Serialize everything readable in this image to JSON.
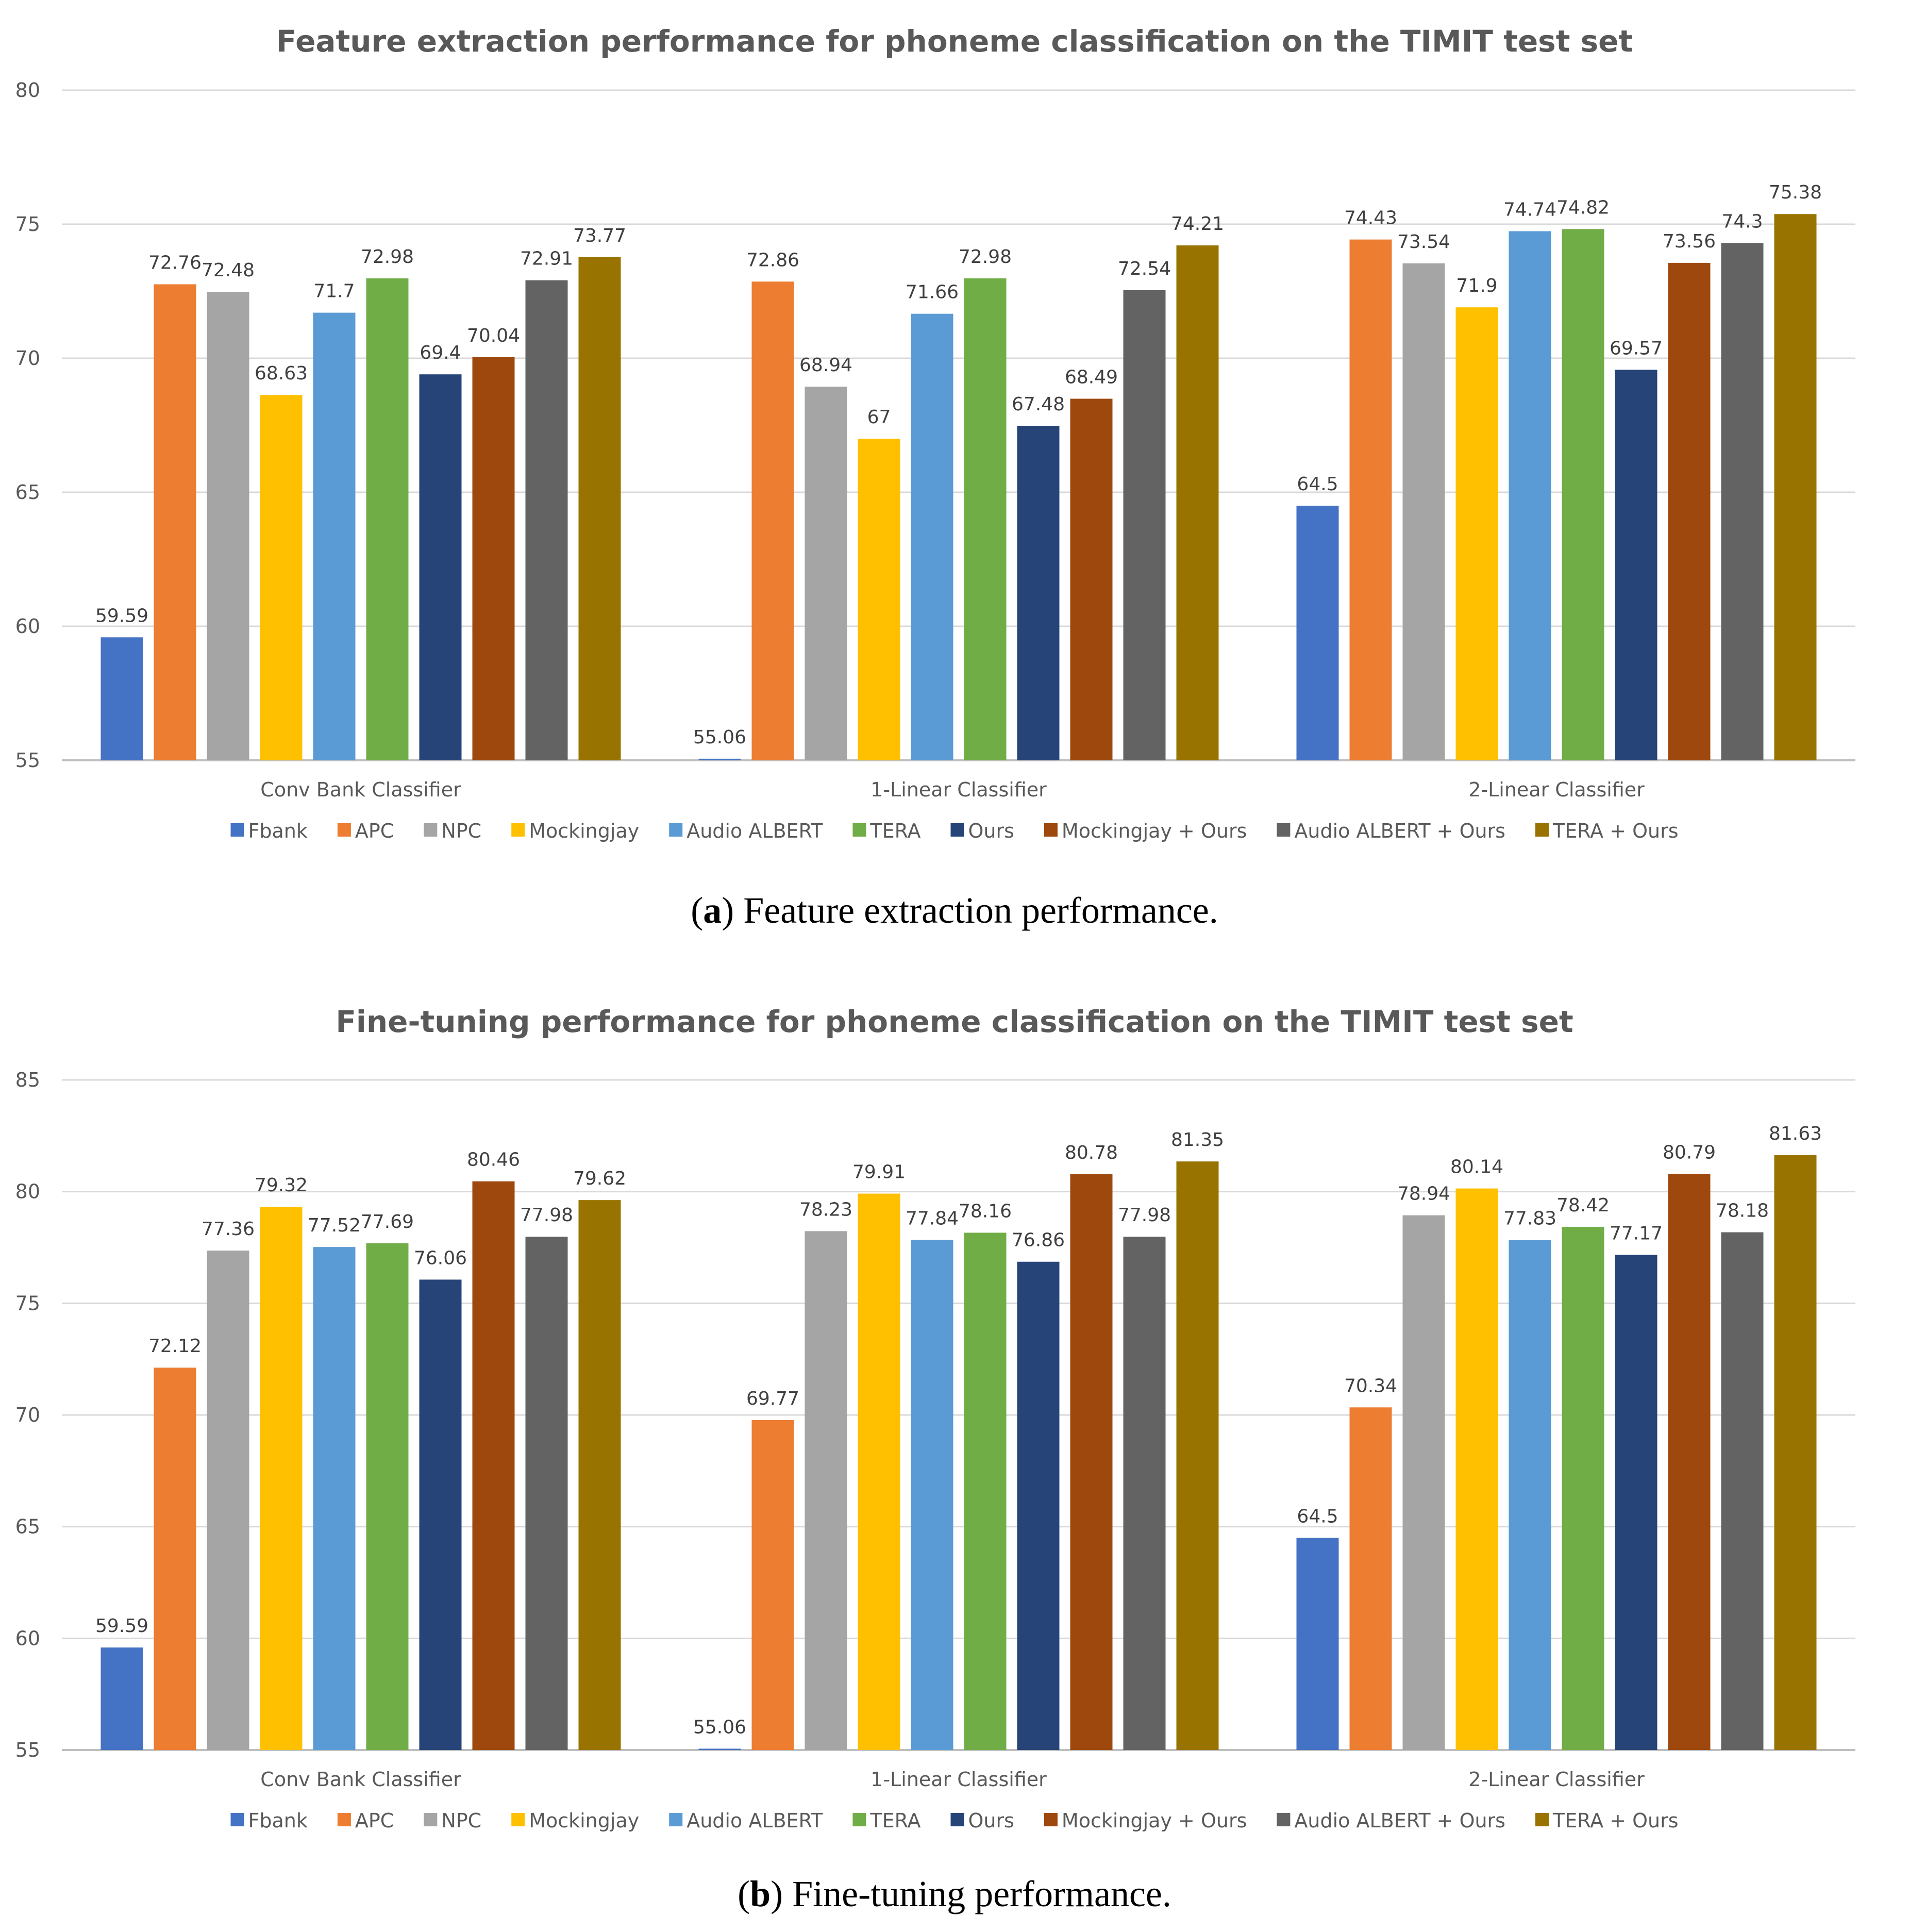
{
  "chart_data": [
    {
      "type": "bar",
      "title": "Feature extraction performance for phoneme classification on the TIMIT test set",
      "caption_label": "a",
      "caption_text": " Feature extraction performance.",
      "ylim": [
        55,
        80
      ],
      "yticks": [
        55,
        60,
        65,
        70,
        75,
        80
      ],
      "grid": true,
      "legend_position": "bottom",
      "categories": [
        "Conv Bank Classifier",
        "1-Linear Classifier",
        "2-Linear Classifier"
      ],
      "series": [
        {
          "name": "Fbank",
          "color": "#4472C4",
          "values": [
            59.59,
            55.06,
            64.5
          ],
          "labels": [
            "59.59",
            "55.06",
            "64.5"
          ]
        },
        {
          "name": "APC",
          "color": "#ED7D31",
          "values": [
            72.76,
            72.86,
            74.43
          ],
          "labels": [
            "72.76",
            "72.86",
            "74.43"
          ]
        },
        {
          "name": "NPC",
          "color": "#A5A5A5",
          "values": [
            72.48,
            68.94,
            73.54
          ],
          "labels": [
            "72.48",
            "68.94",
            "73.54"
          ]
        },
        {
          "name": "Mockingjay",
          "color": "#FFC000",
          "values": [
            68.63,
            67,
            71.9
          ],
          "labels": [
            "68.63",
            "67",
            "71.9"
          ]
        },
        {
          "name": "Audio ALBERT",
          "color": "#5B9BD5",
          "values": [
            71.7,
            71.66,
            74.74
          ],
          "labels": [
            "71.7",
            "71.66",
            "74.74"
          ]
        },
        {
          "name": "TERA",
          "color": "#70AD47",
          "values": [
            72.98,
            72.98,
            74.82
          ],
          "labels": [
            "72.98",
            "72.98",
            "74.82"
          ]
        },
        {
          "name": "Ours",
          "color": "#264478",
          "values": [
            69.4,
            67.48,
            69.57
          ],
          "labels": [
            "69.4",
            "67.48",
            "69.57"
          ]
        },
        {
          "name": "Mockingjay + Ours",
          "color": "#9E480E",
          "values": [
            70.04,
            68.49,
            73.56
          ],
          "labels": [
            "70.04",
            "68.49",
            "73.56"
          ]
        },
        {
          "name": "Audio ALBERT + Ours",
          "color": "#636363",
          "values": [
            72.91,
            72.54,
            74.3
          ],
          "labels": [
            "72.91",
            "72.54",
            "74.3"
          ]
        },
        {
          "name": "TERA + Ours",
          "color": "#997300",
          "values": [
            73.77,
            74.21,
            75.38
          ],
          "labels": [
            "73.77",
            "74.21",
            "75.38"
          ]
        }
      ]
    },
    {
      "type": "bar",
      "title": "Fine-tuning performance for phoneme classification on the TIMIT test set",
      "caption_label": "b",
      "caption_text": " Fine-tuning performance.",
      "ylim": [
        55,
        85
      ],
      "yticks": [
        55,
        60,
        65,
        70,
        75,
        80,
        85
      ],
      "grid": true,
      "legend_position": "bottom",
      "categories": [
        "Conv Bank Classifier",
        "1-Linear Classifier",
        "2-Linear Classifier"
      ],
      "series": [
        {
          "name": "Fbank",
          "color": "#4472C4",
          "values": [
            59.59,
            55.06,
            64.5
          ],
          "labels": [
            "59.59",
            "55.06",
            "64.5"
          ]
        },
        {
          "name": "APC",
          "color": "#ED7D31",
          "values": [
            72.12,
            69.77,
            70.34
          ],
          "labels": [
            "72.12",
            "69.77",
            "70.34"
          ]
        },
        {
          "name": "NPC",
          "color": "#A5A5A5",
          "values": [
            77.36,
            78.23,
            78.94
          ],
          "labels": [
            "77.36",
            "78.23",
            "78.94"
          ]
        },
        {
          "name": "Mockingjay",
          "color": "#FFC000",
          "values": [
            79.32,
            79.91,
            80.14
          ],
          "labels": [
            "79.32",
            "79.91",
            "80.14"
          ]
        },
        {
          "name": "Audio ALBERT",
          "color": "#5B9BD5",
          "values": [
            77.52,
            77.84,
            77.83
          ],
          "labels": [
            "77.52",
            "77.84",
            "77.83"
          ]
        },
        {
          "name": "TERA",
          "color": "#70AD47",
          "values": [
            77.69,
            78.16,
            78.42
          ],
          "labels": [
            "77.69",
            "78.16",
            "78.42"
          ]
        },
        {
          "name": "Ours",
          "color": "#264478",
          "values": [
            76.06,
            76.86,
            77.17
          ],
          "labels": [
            "76.06",
            "76.86",
            "77.17"
          ]
        },
        {
          "name": "Mockingjay + Ours",
          "color": "#9E480E",
          "values": [
            80.46,
            80.78,
            80.79
          ],
          "labels": [
            "80.46",
            "80.78",
            "80.79"
          ]
        },
        {
          "name": "Audio ALBERT + Ours",
          "color": "#636363",
          "values": [
            77.98,
            77.98,
            78.18
          ],
          "labels": [
            "77.98",
            "77.98",
            "78.18"
          ]
        },
        {
          "name": "TERA + Ours",
          "color": "#997300",
          "values": [
            79.62,
            81.35,
            81.63
          ],
          "labels": [
            "79.62",
            "81.35",
            "81.63"
          ]
        }
      ]
    }
  ]
}
